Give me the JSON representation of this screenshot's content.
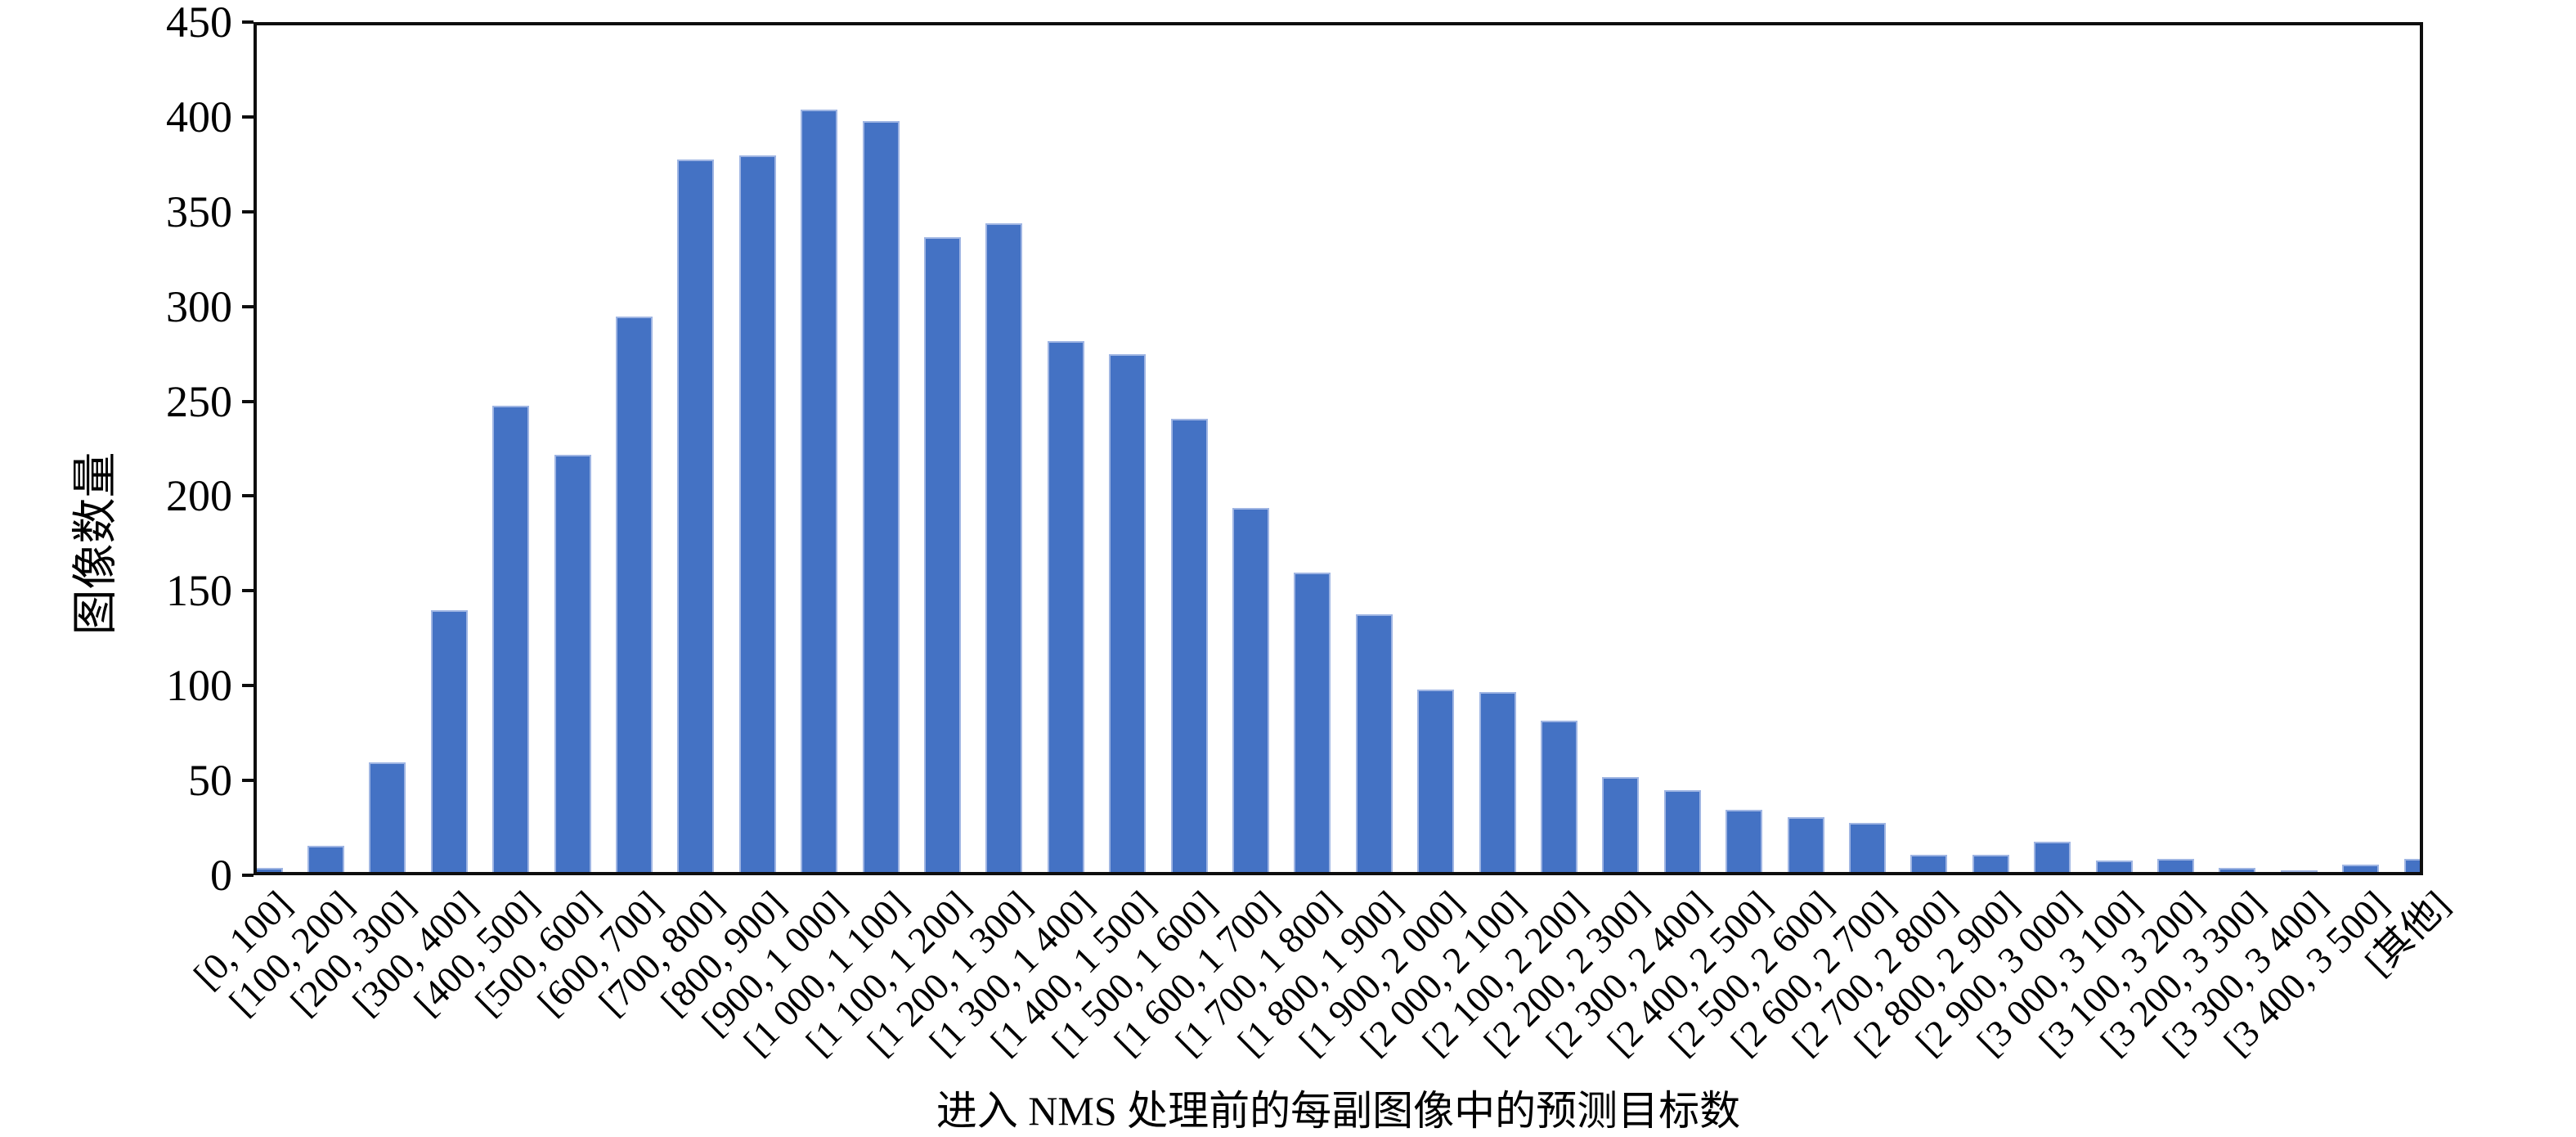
{
  "chart_data": {
    "type": "bar",
    "title": "",
    "xlabel": "进入 NMS 处理前的每副图像中的预测目标数",
    "ylabel": "图像数量",
    "ylim": [
      0,
      450
    ],
    "yticks": [
      0,
      50,
      100,
      150,
      200,
      250,
      300,
      350,
      400,
      450
    ],
    "grid": false,
    "legend": "none",
    "bar_color": "#4472C4",
    "bar_border_color": "#9FB5E3",
    "axis_color": "#0e0e0e",
    "categories": [
      "[0, 100]",
      "[100, 200]",
      "[200, 300]",
      "[300, 400]",
      "[400, 500]",
      "[500, 600]",
      "[600, 700]",
      "[700, 800]",
      "[800, 900]",
      "[900, 1 000]",
      "[1 000, 1 100]",
      "[1 100, 1 200]",
      "[1 200, 1 300]",
      "[1 300, 1 400]",
      "[1 400, 1 500]",
      "[1 500, 1 600]",
      "[1 600, 1 700]",
      "[1 700, 1 800]",
      "[1 800, 1 900]",
      "[1 900, 2 000]",
      "[2 000, 2 100]",
      "[2 100, 2 200]",
      "[2 200, 2 300]",
      "[2 300, 2 400]",
      "[2 400, 2 500]",
      "[2 500, 2 600]",
      "[2 600, 2 700]",
      "[2 700, 2 800]",
      "[2 800, 2 900]",
      "[2 900, 3 000]",
      "[3 000, 3 100]",
      "[3 100, 3 200]",
      "[3 200, 3 300]",
      "[3 300, 3 400]",
      "[3 400, 3 500]",
      "[其他]"
    ],
    "values": [
      2,
      14,
      58,
      138,
      246,
      220,
      293,
      376,
      378,
      402,
      396,
      335,
      342,
      280,
      273,
      239,
      192,
      158,
      136,
      96,
      95,
      80,
      50,
      43,
      33,
      29,
      26,
      9,
      9,
      16,
      6,
      7,
      2,
      1,
      4,
      7
    ]
  }
}
